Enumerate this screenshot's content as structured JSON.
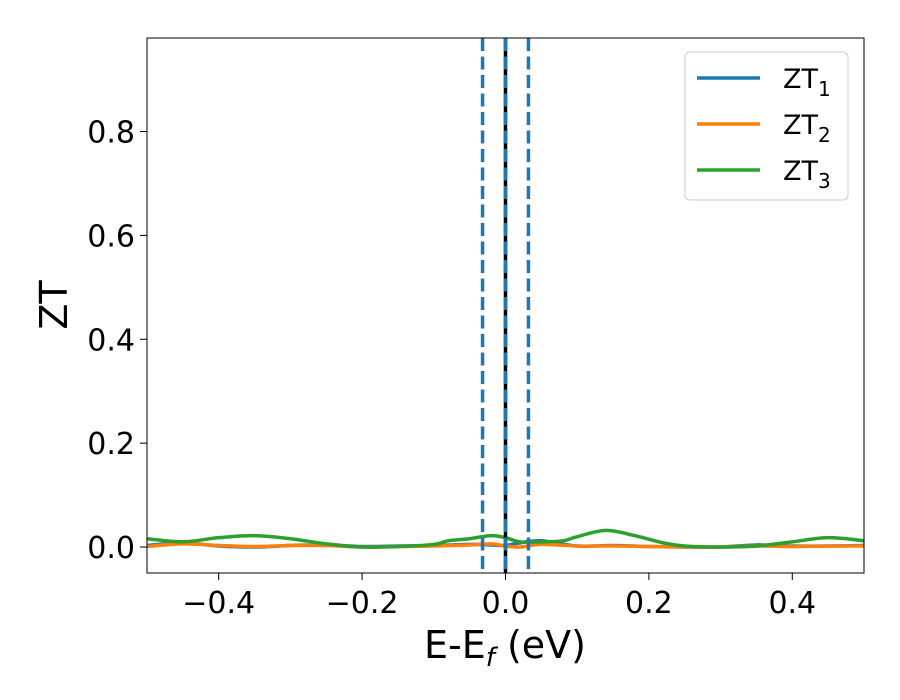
{
  "chart_data": {
    "type": "line",
    "xlabel": {
      "main": "E-E",
      "sub": "f",
      "unit": " (eV)"
    },
    "ylabel": "ZT",
    "xlim": [
      -0.5,
      0.5
    ],
    "ylim": [
      -0.05,
      0.98
    ],
    "xticks": [
      {
        "value": -0.4,
        "label": "−0.4"
      },
      {
        "value": -0.2,
        "label": "−0.2"
      },
      {
        "value": 0.0,
        "label": "0.0"
      },
      {
        "value": 0.2,
        "label": "0.2"
      },
      {
        "value": 0.4,
        "label": "0.4"
      }
    ],
    "yticks": [
      {
        "value": 0.0,
        "label": "0.0"
      },
      {
        "value": 0.2,
        "label": "0.2"
      },
      {
        "value": 0.4,
        "label": "0.4"
      },
      {
        "value": 0.6,
        "label": "0.6"
      },
      {
        "value": 0.8,
        "label": "0.8"
      }
    ],
    "grid": false,
    "legend_position": "top-right",
    "vlines": [
      {
        "x": -0.032,
        "style": "dashed",
        "color": "#1f77b4"
      },
      {
        "x": 0.0,
        "style": "solid",
        "color": "#000000"
      },
      {
        "x": 0.0,
        "style": "dashed",
        "color": "#1f77b4"
      },
      {
        "x": 0.032,
        "style": "dashed",
        "color": "#1f77b4"
      }
    ],
    "series": [
      {
        "name": "ZT",
        "sub": "1",
        "color": "#1f77b4",
        "x": [
          -0.5,
          -0.45,
          -0.4,
          -0.35,
          -0.3,
          -0.25,
          -0.2,
          -0.15,
          -0.1,
          -0.05,
          -0.02,
          0.0,
          0.02,
          0.05,
          0.1,
          0.15,
          0.2,
          0.25,
          0.3,
          0.35,
          0.4,
          0.45,
          0.5
        ],
        "y": [
          0.003,
          0.008,
          0.002,
          0.0,
          0.003,
          0.004,
          0.001,
          0.002,
          0.003,
          0.005,
          0.004,
          0.003,
          0.008,
          0.012,
          0.002,
          0.003,
          0.001,
          0.0,
          0.0,
          0.004,
          0.002,
          0.002,
          0.003
        ]
      },
      {
        "name": "ZT",
        "sub": "2",
        "color": "#ff7f0e",
        "x": [
          -0.5,
          -0.45,
          -0.4,
          -0.35,
          -0.3,
          -0.25,
          -0.2,
          -0.15,
          -0.1,
          -0.05,
          -0.02,
          0.0,
          0.02,
          0.05,
          0.1,
          0.15,
          0.2,
          0.25,
          0.3,
          0.35,
          0.4,
          0.45,
          0.5
        ],
        "y": [
          0.001,
          0.006,
          0.003,
          0.001,
          0.003,
          0.003,
          0.0,
          0.001,
          0.002,
          0.004,
          0.006,
          0.002,
          0.0,
          0.005,
          0.002,
          0.002,
          0.001,
          0.0,
          0.0,
          0.002,
          0.001,
          0.002,
          0.002
        ]
      },
      {
        "name": "ZT",
        "sub": "3",
        "color": "#2ca02c",
        "x": [
          -0.5,
          -0.45,
          -0.4,
          -0.35,
          -0.3,
          -0.25,
          -0.2,
          -0.15,
          -0.1,
          -0.08,
          -0.05,
          -0.02,
          0.0,
          0.02,
          0.05,
          0.08,
          0.1,
          0.14,
          0.18,
          0.22,
          0.25,
          0.3,
          0.35,
          0.4,
          0.45,
          0.5
        ],
        "y": [
          0.016,
          0.01,
          0.018,
          0.022,
          0.016,
          0.006,
          0.0,
          0.001,
          0.005,
          0.012,
          0.016,
          0.022,
          0.018,
          0.01,
          0.01,
          0.012,
          0.02,
          0.032,
          0.022,
          0.008,
          0.002,
          0.0,
          0.002,
          0.01,
          0.018,
          0.012
        ]
      }
    ]
  }
}
